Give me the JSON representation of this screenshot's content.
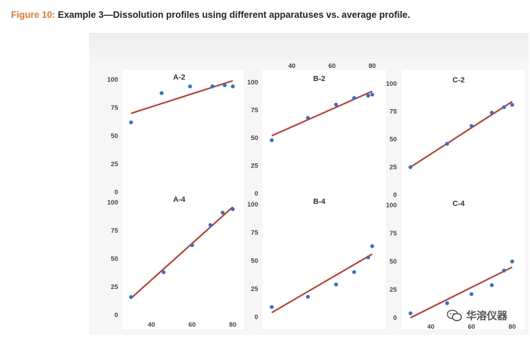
{
  "figure": {
    "number": "Figure 10:",
    "caption": "Example 3—Dissolution profiles using different apparatuses vs. average profile."
  },
  "watermark": {
    "text": "华溶仪器",
    "icon": "wechat-icon"
  },
  "colors": {
    "points": "#2f6fd1",
    "fit_line": "#c0392b",
    "title_number": "#e8782b"
  },
  "chart_data": [
    {
      "type": "scatter",
      "title": "A-2",
      "x": [
        30,
        45,
        59,
        70,
        76,
        80
      ],
      "y": [
        62,
        88,
        94,
        94,
        95,
        94
      ],
      "fit": {
        "x": [
          30,
          80
        ],
        "y": [
          70,
          99
        ]
      },
      "ylim": [
        0,
        100
      ],
      "yticks": [
        "0",
        "25",
        "50",
        "75",
        "100"
      ],
      "xticks": []
    },
    {
      "type": "scatter",
      "title": "B-2",
      "x": [
        30,
        48,
        62,
        71,
        78,
        80
      ],
      "y": [
        48,
        68,
        80,
        86,
        88,
        89
      ],
      "fit": {
        "x": [
          30,
          80
        ],
        "y": [
          52,
          92
        ]
      },
      "ylim": [
        0,
        100
      ],
      "yticks": [
        "0",
        "25",
        "50",
        "75",
        "100"
      ],
      "xticks": [
        "40",
        "60",
        "80"
      ]
    },
    {
      "type": "scatter",
      "title": "C-2",
      "x": [
        30,
        48,
        60,
        70,
        76,
        80
      ],
      "y": [
        25,
        46,
        62,
        74,
        79,
        81
      ],
      "fit": {
        "x": [
          30,
          80
        ],
        "y": [
          25,
          84
        ]
      },
      "ylim": [
        0,
        100
      ],
      "yticks": [
        "0",
        "25",
        "50",
        "75",
        "100"
      ],
      "xticks": []
    },
    {
      "type": "scatter",
      "title": "A-4",
      "x": [
        30,
        46,
        60,
        69,
        75,
        80
      ],
      "y": [
        16,
        38,
        62,
        80,
        91,
        94
      ],
      "fit": {
        "x": [
          30,
          80
        ],
        "y": [
          15,
          96
        ]
      },
      "ylim": [
        0,
        100
      ],
      "yticks": [
        "0",
        "25",
        "50",
        "75",
        "100"
      ],
      "xticks": [
        "40",
        "60",
        "80"
      ]
    },
    {
      "type": "scatter",
      "title": "B-4",
      "x": [
        30,
        48,
        62,
        71,
        78,
        80
      ],
      "y": [
        9,
        18,
        29,
        40,
        53,
        63
      ],
      "fit": {
        "x": [
          30,
          80
        ],
        "y": [
          4,
          56
        ]
      },
      "ylim": [
        0,
        100
      ],
      "yticks": [
        "0",
        "25",
        "50",
        "75",
        "100"
      ],
      "xticks": []
    },
    {
      "type": "scatter",
      "title": "C-4",
      "x": [
        30,
        48,
        60,
        70,
        76,
        80
      ],
      "y": [
        4,
        13,
        21,
        29,
        42,
        50
      ],
      "fit": {
        "x": [
          30,
          80
        ],
        "y": [
          0,
          45
        ]
      },
      "ylim": [
        0,
        100
      ],
      "yticks": [
        "0",
        "25",
        "50",
        "75",
        "100"
      ],
      "xticks": [
        "40",
        "60",
        "80"
      ]
    }
  ]
}
